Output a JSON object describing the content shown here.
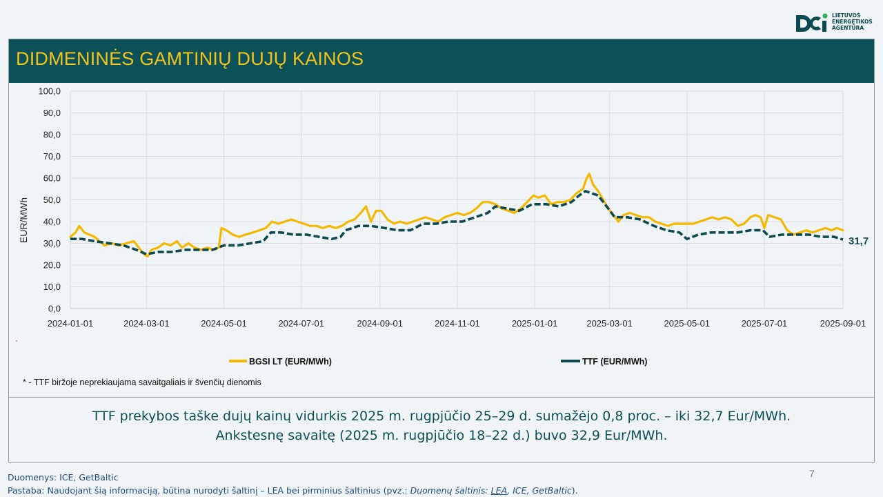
{
  "logo": {
    "line1": "LIETUVOS",
    "line2": "ENERGETIKOS",
    "line3": "AGENTŪRA",
    "brand_color": "#0b4a52"
  },
  "slide": {
    "title": "DIDMENINĖS GAMTINIŲ DUJŲ KAINOS",
    "footnote": "* - TTF biržoje neprekiaujama savaitgaliais ir švenčių dienomis",
    "summary_line1": "TTF prekybos taške dujų kainų vidurkis 2025 m. rugpjūčio 25–29 d. sumažėjo 0,8 proc. – iki 32,7 Eur/MWh.",
    "summary_line2": "Ankstesnę savaitę (2025 m. rugpjūčio 18–22 d.) buvo 32,9 Eur/MWh.",
    "page_number": "7",
    "source_line": "Duomenys: ICE, GetBaltic",
    "note_prefix": "Pastaba: Naudojant šią informaciją, būtina nurodyti šaltinį – LEA bei pirminius šaltinius (pvz.: ",
    "note_italic": "Duomenų šaltinis: ",
    "note_link": "LEA",
    "note_italic_rest": ", ICE, GetBaltic",
    "note_suffix": ")."
  },
  "colors": {
    "title_bar": "#0b5157",
    "title_text": "#f2c31a",
    "bgsi": "#f5b800",
    "ttf": "#0d4a4f"
  },
  "chart_data": {
    "type": "line",
    "ylabel": "EUR/MWh",
    "ylim": [
      0,
      100
    ],
    "yticks": [
      "0,0",
      "10,0",
      "20,0",
      "30,0",
      "40,0",
      "50,0",
      "60,0",
      "70,0",
      "80,0",
      "90,0",
      "100,0"
    ],
    "xlim": [
      "2024-01-01",
      "2025-09-01"
    ],
    "xticks": [
      "2024-01-01",
      "2024-03-01",
      "2024-05-01",
      "2024-07-01",
      "2024-09-01",
      "2024-11-01",
      "2025-01-01",
      "2025-03-01",
      "2025-05-01",
      "2025-07-01",
      "2025-09-01"
    ],
    "grid": true,
    "legend_position": "bottom",
    "end_label": "31,7",
    "series": [
      {
        "name": "BGSI LT (EUR/MWh)",
        "color": "#f5b800",
        "style": "solid",
        "points": [
          [
            "2024-01-01",
            33
          ],
          [
            "2024-01-05",
            35
          ],
          [
            "2024-01-08",
            38
          ],
          [
            "2024-01-12",
            35
          ],
          [
            "2024-01-16",
            34
          ],
          [
            "2024-01-20",
            33
          ],
          [
            "2024-01-24",
            31
          ],
          [
            "2024-01-28",
            29
          ],
          [
            "2024-02-03",
            30
          ],
          [
            "2024-02-08",
            29
          ],
          [
            "2024-02-14",
            30
          ],
          [
            "2024-02-20",
            31
          ],
          [
            "2024-02-24",
            28
          ],
          [
            "2024-02-28",
            25
          ],
          [
            "2024-03-02",
            24
          ],
          [
            "2024-03-05",
            27
          ],
          [
            "2024-03-10",
            28
          ],
          [
            "2024-03-15",
            30
          ],
          [
            "2024-03-20",
            29
          ],
          [
            "2024-03-25",
            31
          ],
          [
            "2024-03-29",
            28
          ],
          [
            "2024-04-03",
            30
          ],
          [
            "2024-04-08",
            28
          ],
          [
            "2024-04-13",
            27
          ],
          [
            "2024-04-18",
            28
          ],
          [
            "2024-04-23",
            27
          ],
          [
            "2024-04-27",
            28
          ],
          [
            "2024-04-29",
            37
          ],
          [
            "2024-05-03",
            36
          ],
          [
            "2024-05-08",
            34
          ],
          [
            "2024-05-13",
            33
          ],
          [
            "2024-05-18",
            34
          ],
          [
            "2024-05-24",
            35
          ],
          [
            "2024-05-29",
            36
          ],
          [
            "2024-06-03",
            37
          ],
          [
            "2024-06-08",
            40
          ],
          [
            "2024-06-13",
            39
          ],
          [
            "2024-06-18",
            40
          ],
          [
            "2024-06-23",
            41
          ],
          [
            "2024-06-28",
            40
          ],
          [
            "2024-07-03",
            39
          ],
          [
            "2024-07-08",
            38
          ],
          [
            "2024-07-13",
            38
          ],
          [
            "2024-07-18",
            37
          ],
          [
            "2024-07-23",
            38
          ],
          [
            "2024-07-28",
            37
          ],
          [
            "2024-08-02",
            38
          ],
          [
            "2024-08-07",
            40
          ],
          [
            "2024-08-12",
            41
          ],
          [
            "2024-08-17",
            44
          ],
          [
            "2024-08-21",
            47
          ],
          [
            "2024-08-25",
            40
          ],
          [
            "2024-08-29",
            45
          ],
          [
            "2024-09-02",
            45
          ],
          [
            "2024-09-07",
            41
          ],
          [
            "2024-09-12",
            39
          ],
          [
            "2024-09-17",
            40
          ],
          [
            "2024-09-22",
            39
          ],
          [
            "2024-09-27",
            40
          ],
          [
            "2024-10-02",
            41
          ],
          [
            "2024-10-07",
            42
          ],
          [
            "2024-10-12",
            41
          ],
          [
            "2024-10-17",
            40
          ],
          [
            "2024-10-22",
            42
          ],
          [
            "2024-10-27",
            43
          ],
          [
            "2024-11-01",
            44
          ],
          [
            "2024-11-06",
            43
          ],
          [
            "2024-11-11",
            44
          ],
          [
            "2024-11-16",
            46
          ],
          [
            "2024-11-21",
            49
          ],
          [
            "2024-11-26",
            49
          ],
          [
            "2024-12-01",
            48
          ],
          [
            "2024-12-06",
            46
          ],
          [
            "2024-12-11",
            45
          ],
          [
            "2024-12-16",
            44
          ],
          [
            "2024-12-21",
            46
          ],
          [
            "2024-12-26",
            49
          ],
          [
            "2024-12-31",
            52
          ],
          [
            "2025-01-04",
            51
          ],
          [
            "2025-01-09",
            52
          ],
          [
            "2025-01-14",
            48
          ],
          [
            "2025-01-19",
            49
          ],
          [
            "2025-01-24",
            49
          ],
          [
            "2025-01-29",
            50
          ],
          [
            "2025-02-03",
            53
          ],
          [
            "2025-02-08",
            55
          ],
          [
            "2025-02-11",
            60
          ],
          [
            "2025-02-13",
            62
          ],
          [
            "2025-02-16",
            57
          ],
          [
            "2025-02-20",
            54
          ],
          [
            "2025-02-24",
            50
          ],
          [
            "2025-02-28",
            46
          ],
          [
            "2025-03-04",
            43
          ],
          [
            "2025-03-08",
            40
          ],
          [
            "2025-03-12",
            43
          ],
          [
            "2025-03-17",
            44
          ],
          [
            "2025-03-22",
            43
          ],
          [
            "2025-03-27",
            42
          ],
          [
            "2025-04-01",
            42
          ],
          [
            "2025-04-06",
            40
          ],
          [
            "2025-04-11",
            39
          ],
          [
            "2025-04-16",
            38
          ],
          [
            "2025-04-21",
            39
          ],
          [
            "2025-04-26",
            39
          ],
          [
            "2025-05-01",
            39
          ],
          [
            "2025-05-06",
            39
          ],
          [
            "2025-05-11",
            40
          ],
          [
            "2025-05-16",
            41
          ],
          [
            "2025-05-21",
            42
          ],
          [
            "2025-05-26",
            41
          ],
          [
            "2025-05-31",
            42
          ],
          [
            "2025-06-05",
            41
          ],
          [
            "2025-06-10",
            38
          ],
          [
            "2025-06-15",
            39
          ],
          [
            "2025-06-20",
            42
          ],
          [
            "2025-06-24",
            43
          ],
          [
            "2025-06-28",
            42
          ],
          [
            "2025-07-01",
            37
          ],
          [
            "2025-07-04",
            43
          ],
          [
            "2025-07-09",
            42
          ],
          [
            "2025-07-14",
            41
          ],
          [
            "2025-07-19",
            36
          ],
          [
            "2025-07-24",
            34
          ],
          [
            "2025-07-29",
            35
          ],
          [
            "2025-08-03",
            36
          ],
          [
            "2025-08-08",
            35
          ],
          [
            "2025-08-13",
            36
          ],
          [
            "2025-08-18",
            37
          ],
          [
            "2025-08-23",
            36
          ],
          [
            "2025-08-27",
            37
          ],
          [
            "2025-09-01",
            36
          ]
        ]
      },
      {
        "name": "TTF (EUR/MWh)",
        "color": "#0d4a4f",
        "style": "dashed",
        "points": [
          [
            "2024-01-01",
            32
          ],
          [
            "2024-01-10",
            32
          ],
          [
            "2024-01-20",
            31
          ],
          [
            "2024-02-01",
            30
          ],
          [
            "2024-02-12",
            29
          ],
          [
            "2024-02-22",
            27
          ],
          [
            "2024-03-01",
            25
          ],
          [
            "2024-03-10",
            26
          ],
          [
            "2024-03-20",
            26
          ],
          [
            "2024-04-01",
            27
          ],
          [
            "2024-04-12",
            27
          ],
          [
            "2024-04-22",
            27
          ],
          [
            "2024-05-01",
            29
          ],
          [
            "2024-05-12",
            29
          ],
          [
            "2024-05-22",
            30
          ],
          [
            "2024-06-01",
            31
          ],
          [
            "2024-06-07",
            35
          ],
          [
            "2024-06-15",
            35
          ],
          [
            "2024-06-25",
            34
          ],
          [
            "2024-07-05",
            34
          ],
          [
            "2024-07-15",
            33
          ],
          [
            "2024-07-25",
            32
          ],
          [
            "2024-08-01",
            33
          ],
          [
            "2024-08-05",
            36
          ],
          [
            "2024-08-15",
            38
          ],
          [
            "2024-08-25",
            38
          ],
          [
            "2024-09-05",
            37
          ],
          [
            "2024-09-15",
            36
          ],
          [
            "2024-09-25",
            36
          ],
          [
            "2024-10-05",
            39
          ],
          [
            "2024-10-15",
            39
          ],
          [
            "2024-10-25",
            40
          ],
          [
            "2024-11-05",
            40
          ],
          [
            "2024-11-15",
            42
          ],
          [
            "2024-11-25",
            44
          ],
          [
            "2024-12-01",
            47
          ],
          [
            "2024-12-10",
            46
          ],
          [
            "2024-12-20",
            45
          ],
          [
            "2024-12-30",
            48
          ],
          [
            "2025-01-10",
            48
          ],
          [
            "2025-01-20",
            47
          ],
          [
            "2025-01-30",
            49
          ],
          [
            "2025-02-05",
            52
          ],
          [
            "2025-02-10",
            54
          ],
          [
            "2025-02-20",
            52
          ],
          [
            "2025-02-28",
            46
          ],
          [
            "2025-03-05",
            42
          ],
          [
            "2025-03-15",
            42
          ],
          [
            "2025-03-25",
            41
          ],
          [
            "2025-04-05",
            38
          ],
          [
            "2025-04-15",
            36
          ],
          [
            "2025-04-25",
            35
          ],
          [
            "2025-05-01",
            32
          ],
          [
            "2025-05-10",
            34
          ],
          [
            "2025-05-20",
            35
          ],
          [
            "2025-06-01",
            35
          ],
          [
            "2025-06-10",
            35
          ],
          [
            "2025-06-20",
            36
          ],
          [
            "2025-06-30",
            36
          ],
          [
            "2025-07-05",
            33
          ],
          [
            "2025-07-15",
            34
          ],
          [
            "2025-07-25",
            34
          ],
          [
            "2025-08-05",
            34
          ],
          [
            "2025-08-15",
            33
          ],
          [
            "2025-08-25",
            33
          ],
          [
            "2025-09-01",
            31.7
          ]
        ]
      }
    ]
  }
}
